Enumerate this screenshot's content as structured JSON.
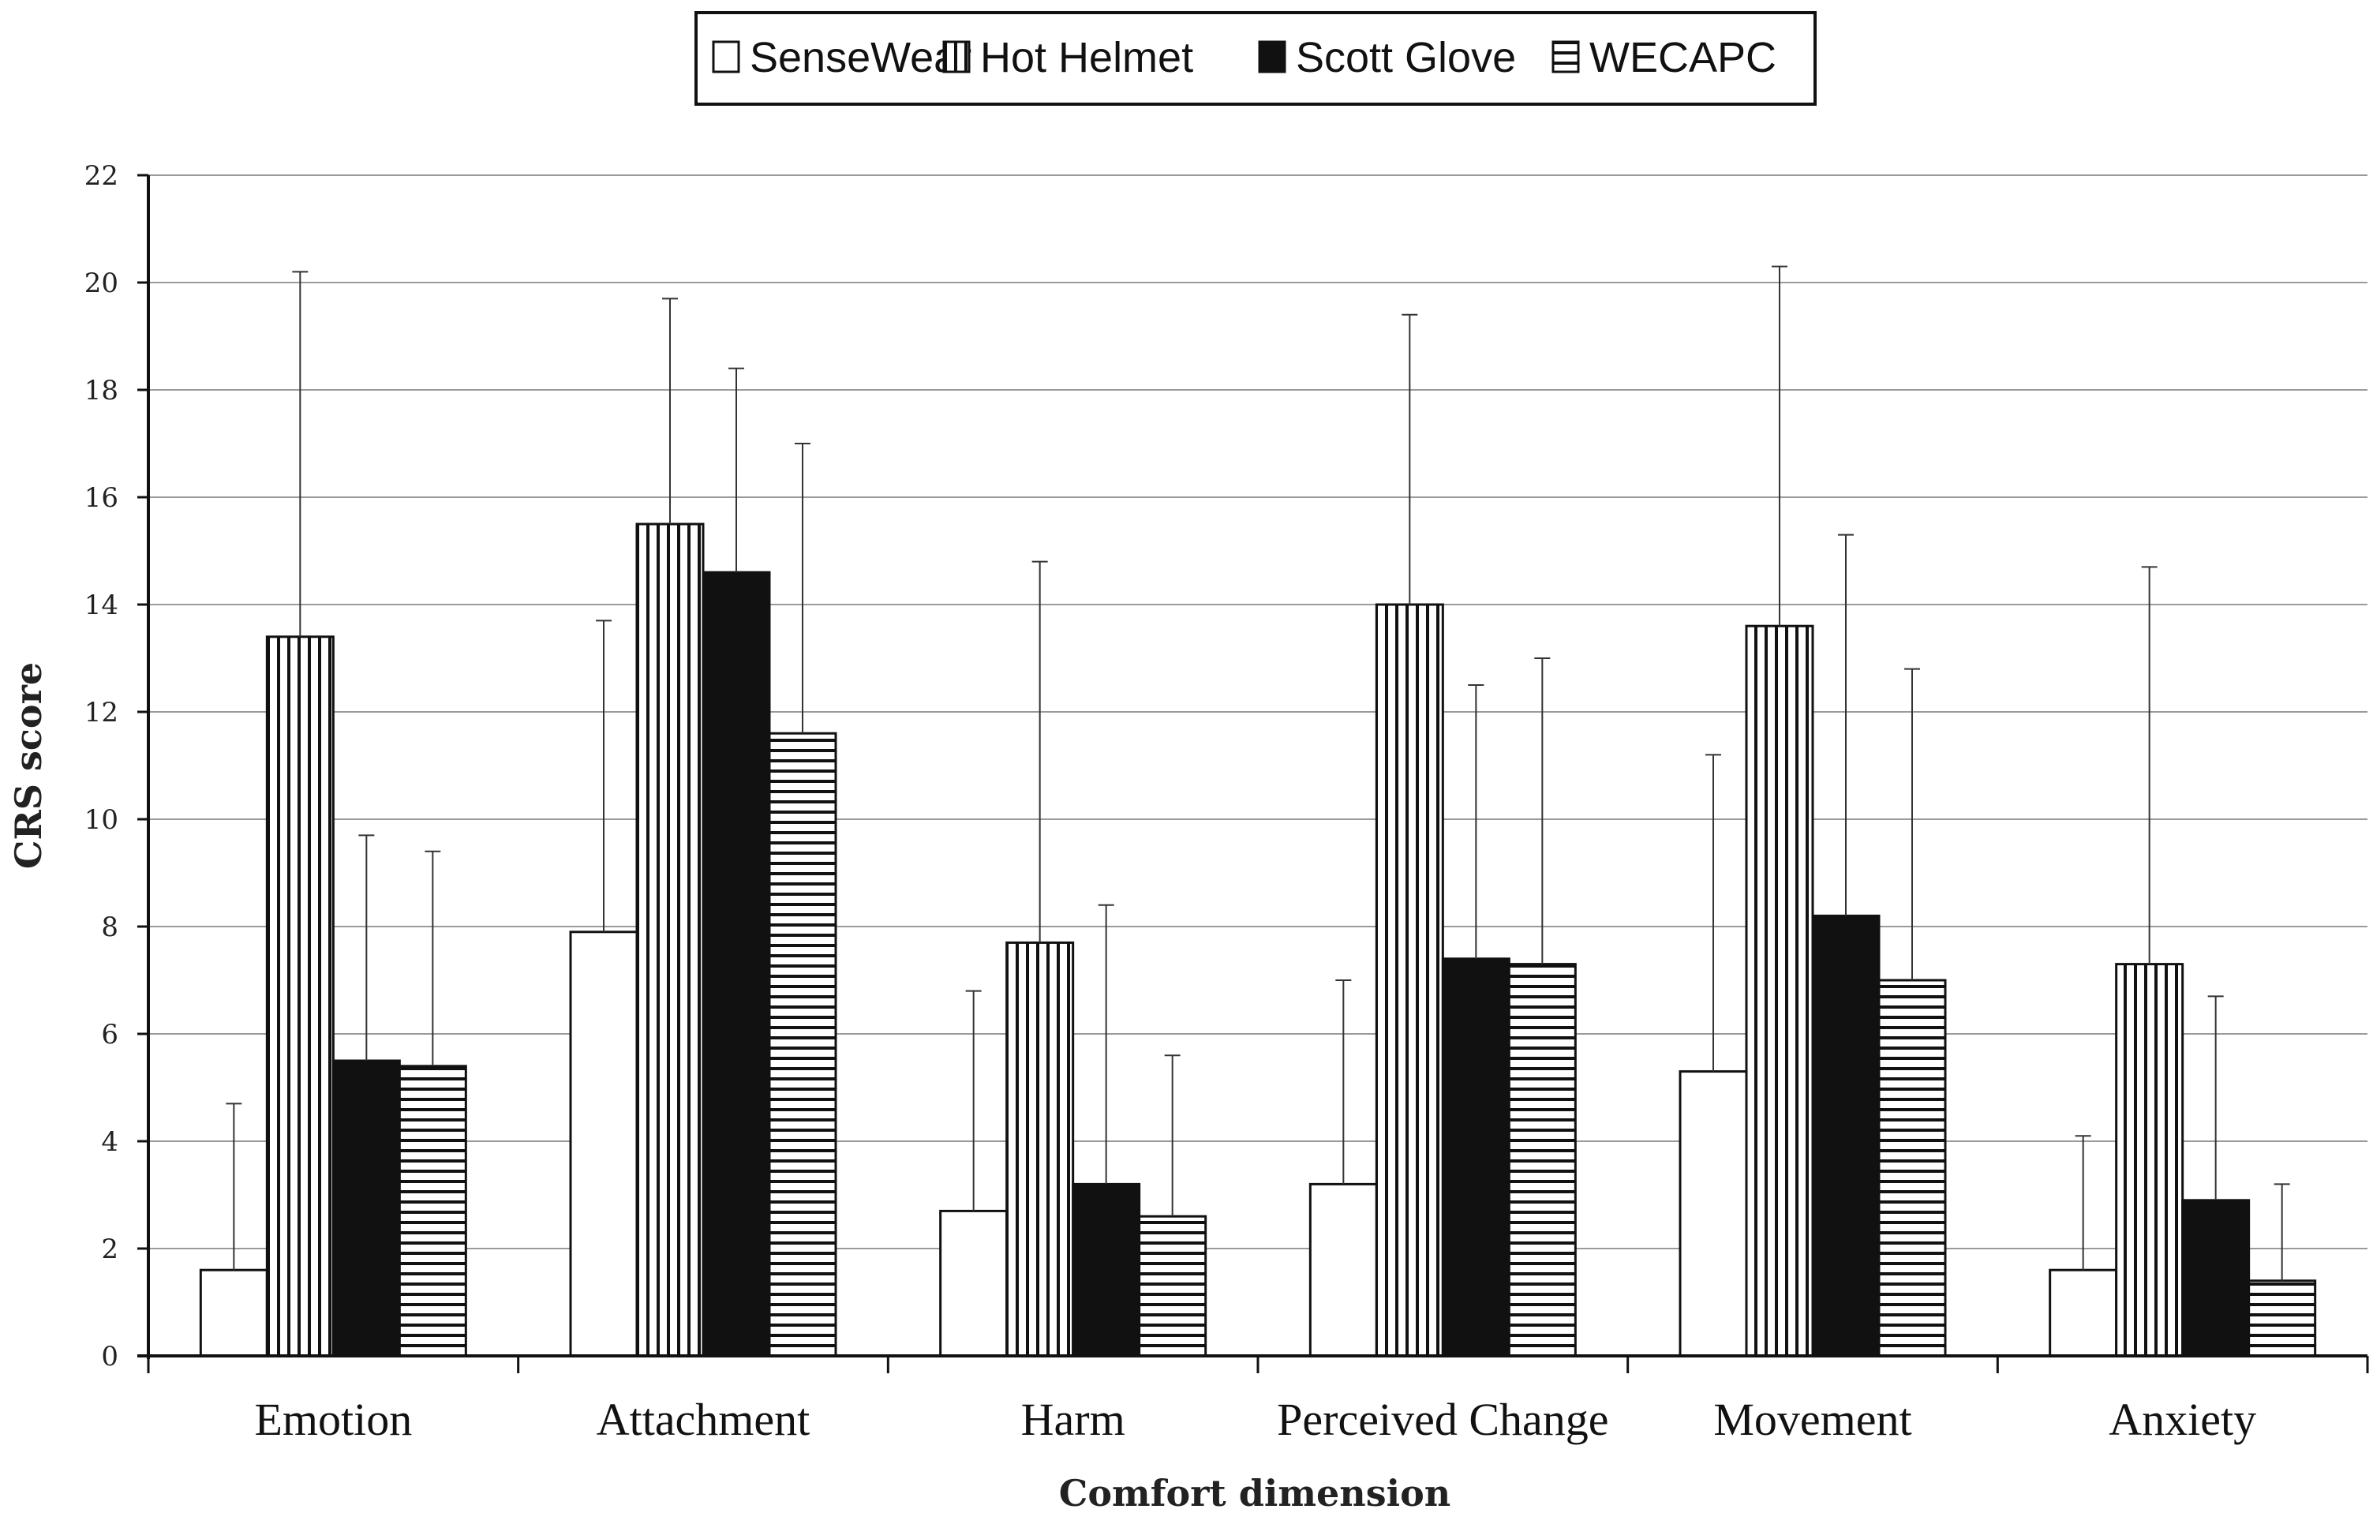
{
  "chart_data": {
    "type": "bar",
    "xlabel": "Comfort dimension",
    "ylabel": "CRS score",
    "ylim": [
      0,
      22
    ],
    "yticks": [
      0,
      2,
      4,
      6,
      8,
      10,
      12,
      14,
      16,
      18,
      20,
      22
    ],
    "grid": true,
    "legend_position": "top-center",
    "error_bars": "upper",
    "categories": [
      "Emotion",
      "Attachment",
      "Harm",
      "Perceived Change",
      "Movement",
      "Anxiety"
    ],
    "series": [
      {
        "name": "SenseWear",
        "pattern": "none",
        "values": [
          1.6,
          7.9,
          2.7,
          3.2,
          5.3,
          1.6
        ],
        "error_upper": [
          4.7,
          13.7,
          6.8,
          7.0,
          11.2,
          4.1
        ]
      },
      {
        "name": "Hot Helmet",
        "pattern": "vertical",
        "values": [
          13.4,
          15.5,
          7.7,
          14.0,
          13.6,
          7.3
        ],
        "error_upper": [
          20.2,
          19.7,
          14.8,
          19.4,
          20.3,
          14.7
        ]
      },
      {
        "name": "Scott Glove",
        "pattern": "solid",
        "values": [
          5.5,
          14.6,
          3.2,
          7.4,
          8.2,
          2.9
        ],
        "error_upper": [
          9.7,
          18.4,
          8.4,
          12.5,
          15.3,
          6.7
        ]
      },
      {
        "name": "WECAPC",
        "pattern": "horizontal",
        "values": [
          5.4,
          11.6,
          2.6,
          7.3,
          7.0,
          1.4
        ],
        "error_upper": [
          9.4,
          17.0,
          5.6,
          13.0,
          12.8,
          3.2
        ]
      }
    ]
  },
  "colors": {
    "bar_outline": "#111111",
    "grid": "#9a9a9a",
    "axis": "#111111",
    "fill_light": "#ffffff",
    "fill_dark": "#111111"
  }
}
